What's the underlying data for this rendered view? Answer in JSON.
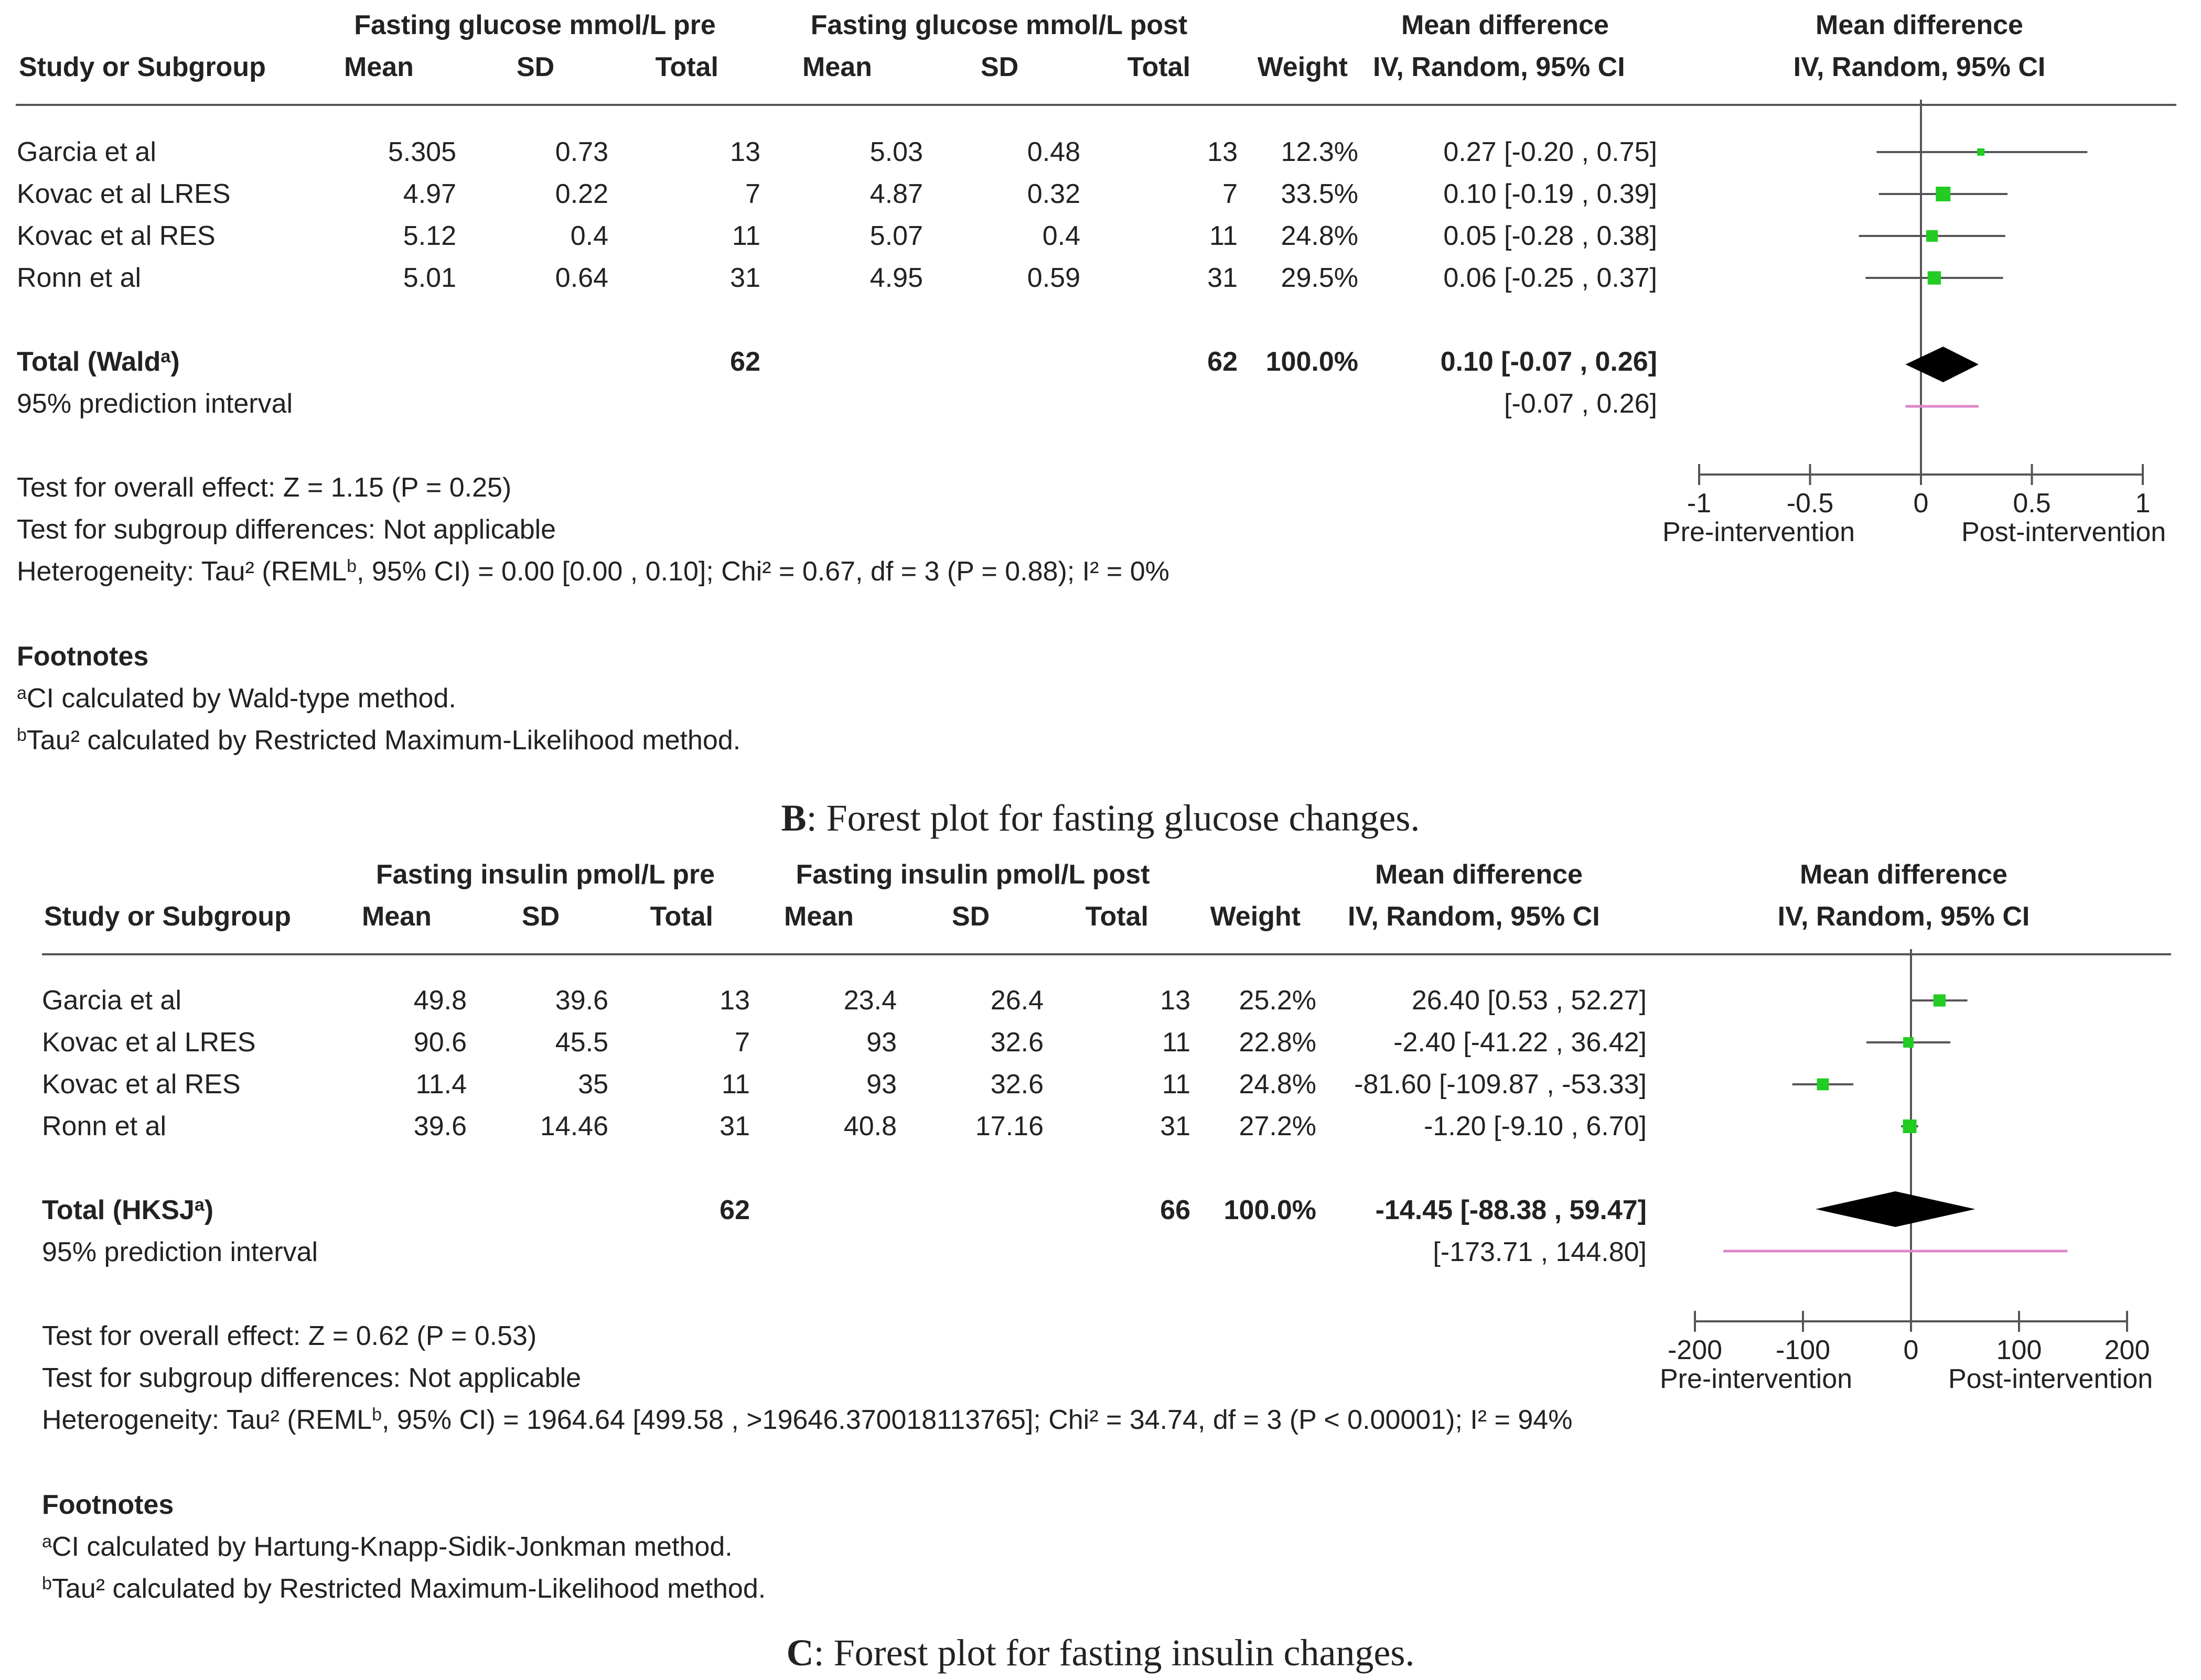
{
  "panels": [
    {
      "id": "B",
      "caption_letter": "B",
      "caption_text": ": Forest plot for fasting glucose changes.",
      "header": {
        "group_pre": "Fasting glucose mmol/L pre",
        "group_post": "Fasting glucose mmol/L post",
        "md_label": "Mean difference",
        "md_method": "IV, Random, 95% CI",
        "plot_label": "Mean difference",
        "plot_method": "IV, Random, 95% CI",
        "study_col": "Study or Subgroup",
        "mean": "Mean",
        "sd": "SD",
        "total": "Total",
        "weight": "Weight"
      },
      "rows": [
        {
          "study": "Garcia et al",
          "pre_mean": "5.305",
          "pre_sd": "0.73",
          "pre_total": "13",
          "post_mean": "5.03",
          "post_sd": "0.48",
          "post_total": "13",
          "weight": "12.3%",
          "ci_text": "0.27 [-0.20 , 0.75]"
        },
        {
          "study": "Kovac et al LRES",
          "pre_mean": "4.97",
          "pre_sd": "0.22",
          "pre_total": "7",
          "post_mean": "4.87",
          "post_sd": "0.32",
          "post_total": "7",
          "weight": "33.5%",
          "ci_text": "0.10 [-0.19 , 0.39]"
        },
        {
          "study": "Kovac et al RES",
          "pre_mean": "5.12",
          "pre_sd": "0.4",
          "pre_total": "11",
          "post_mean": "5.07",
          "post_sd": "0.4",
          "post_total": "11",
          "weight": "24.8%",
          "ci_text": "0.05 [-0.28 , 0.38]"
        },
        {
          "study": "Ronn et al",
          "pre_mean": "5.01",
          "pre_sd": "0.64",
          "pre_total": "31",
          "post_mean": "4.95",
          "post_sd": "0.59",
          "post_total": "31",
          "weight": "29.5%",
          "ci_text": "0.06 [-0.25 , 0.37]"
        }
      ],
      "total": {
        "label": "Total (Wald",
        "sup": "a",
        "label_end": ")",
        "pre_total": "62",
        "post_total": "62",
        "weight": "100.0%",
        "ci_text": "0.10 [-0.07 , 0.26]"
      },
      "prediction": {
        "label": "95% prediction interval",
        "ci_text": "[-0.07 , 0.26]"
      },
      "tests": {
        "overall": "Test for overall effect: Z = 1.15 (P = 0.25)",
        "subgroup": "Test for subgroup differences: Not applicable",
        "het_pre": "Heterogeneity: Tau² (REML",
        "het_sup": "b",
        "het_post": ", 95% CI) = 0.00 [0.00 , 0.10]; Chi² = 0.67, df = 3 (P = 0.88); I² = 0%"
      },
      "footnotes": {
        "title": "Footnotes",
        "a_sup": "a",
        "a_text": "CI calculated by Wald-type method.",
        "b_sup": "b",
        "b_text": "Tau² calculated by Restricted Maximum-Likelihood method."
      },
      "axis": {
        "ticks": [
          "-1",
          "-0.5",
          "0",
          "0.5",
          "1"
        ],
        "favours_left": "Pre-intervention",
        "favours_right": "Post-intervention"
      }
    },
    {
      "id": "C",
      "caption_letter": "C",
      "caption_text": ": Forest plot for fasting insulin changes.",
      "header": {
        "group_pre": "Fasting insulin pmol/L pre",
        "group_post": "Fasting insulin pmol/L post",
        "md_label": "Mean difference",
        "md_method": "IV, Random, 95% CI",
        "plot_label": "Mean difference",
        "plot_method": "IV, Random, 95% CI",
        "study_col": "Study or Subgroup",
        "mean": "Mean",
        "sd": "SD",
        "total": "Total",
        "weight": "Weight"
      },
      "rows": [
        {
          "study": "Garcia et al",
          "pre_mean": "49.8",
          "pre_sd": "39.6",
          "pre_total": "13",
          "post_mean": "23.4",
          "post_sd": "26.4",
          "post_total": "13",
          "weight": "25.2%",
          "ci_text": "26.40 [0.53 , 52.27]"
        },
        {
          "study": "Kovac et al LRES",
          "pre_mean": "90.6",
          "pre_sd": "45.5",
          "pre_total": "7",
          "post_mean": "93",
          "post_sd": "32.6",
          "post_total": "11",
          "weight": "22.8%",
          "ci_text": "-2.40 [-41.22 , 36.42]"
        },
        {
          "study": "Kovac et al RES",
          "pre_mean": "11.4",
          "pre_sd": "35",
          "pre_total": "11",
          "post_mean": "93",
          "post_sd": "32.6",
          "post_total": "11",
          "weight": "24.8%",
          "ci_text": "-81.60 [-109.87 , -53.33]"
        },
        {
          "study": "Ronn et al",
          "pre_mean": "39.6",
          "pre_sd": "14.46",
          "pre_total": "31",
          "post_mean": "40.8",
          "post_sd": "17.16",
          "post_total": "31",
          "weight": "27.2%",
          "ci_text": "-1.20 [-9.10 , 6.70]"
        }
      ],
      "total": {
        "label": "Total (HKSJ",
        "sup": "a",
        "label_end": ")",
        "pre_total": "62",
        "post_total": "66",
        "weight": "100.0%",
        "ci_text": "-14.45 [-88.38 , 59.47]"
      },
      "prediction": {
        "label": "95% prediction interval",
        "ci_text": "[-173.71 , 144.80]"
      },
      "tests": {
        "overall": "Test for overall effect: Z = 0.62 (P = 0.53)",
        "subgroup": "Test for subgroup differences: Not applicable",
        "het_pre": "Heterogeneity: Tau² (REML",
        "het_sup": "b",
        "het_post": ", 95% CI) = 1964.64 [499.58 , >19646.370018113765]; Chi² = 34.74, df = 3 (P < 0.00001); I² = 94%"
      },
      "footnotes": {
        "title": "Footnotes",
        "a_sup": "a",
        "a_text": "CI calculated by Hartung-Knapp-Sidik-Jonkman method.",
        "b_sup": "b",
        "b_text": "Tau² calculated by Restricted Maximum-Likelihood method."
      },
      "axis": {
        "ticks": [
          "-200",
          "-100",
          "0",
          "100",
          "200"
        ],
        "favours_left": "Pre-intervention",
        "favours_right": "Post-intervention"
      }
    }
  ],
  "chart_data": [
    {
      "type": "forest",
      "title": "Forest plot for fasting glucose changes.",
      "xlabel": "Mean difference IV, Random, 95% CI",
      "xlim": [
        -1,
        1
      ],
      "categories": [
        "Garcia et al",
        "Kovac et al LRES",
        "Kovac et al RES",
        "Ronn et al"
      ],
      "series": [
        {
          "name": "mean_difference",
          "values": [
            0.27,
            0.1,
            0.05,
            0.06
          ]
        },
        {
          "name": "ci_low",
          "values": [
            -0.2,
            -0.19,
            -0.28,
            -0.25
          ]
        },
        {
          "name": "ci_high",
          "values": [
            0.75,
            0.39,
            0.38,
            0.37
          ]
        },
        {
          "name": "weight_pct",
          "values": [
            12.3,
            33.5,
            24.8,
            29.5
          ]
        }
      ],
      "pooled": {
        "estimate": 0.1,
        "ci": [
          -0.07,
          0.26
        ]
      },
      "prediction_interval": [
        -0.07,
        0.26
      ],
      "colors": {
        "marker": "#22cc22",
        "diamond": "#000000",
        "prediction": "#dd88cc",
        "line": "#555555"
      }
    },
    {
      "type": "forest",
      "title": "Forest plot for fasting insulin changes.",
      "xlabel": "Mean difference IV, Random, 95% CI",
      "xlim": [
        -200,
        200
      ],
      "categories": [
        "Garcia et al",
        "Kovac et al LRES",
        "Kovac et al RES",
        "Ronn et al"
      ],
      "series": [
        {
          "name": "mean_difference",
          "values": [
            26.4,
            -2.4,
            -81.6,
            -1.2
          ]
        },
        {
          "name": "ci_low",
          "values": [
            0.53,
            -41.22,
            -109.87,
            -9.1
          ]
        },
        {
          "name": "ci_high",
          "values": [
            52.27,
            36.42,
            -53.33,
            6.7
          ]
        },
        {
          "name": "weight_pct",
          "values": [
            25.2,
            22.8,
            24.8,
            27.2
          ]
        }
      ],
      "pooled": {
        "estimate": -14.45,
        "ci": [
          -88.38,
          59.47
        ]
      },
      "prediction_interval": [
        -173.71,
        144.8
      ],
      "colors": {
        "marker": "#22cc22",
        "diamond": "#000000",
        "prediction": "#dd88cc",
        "line": "#555555"
      }
    }
  ]
}
